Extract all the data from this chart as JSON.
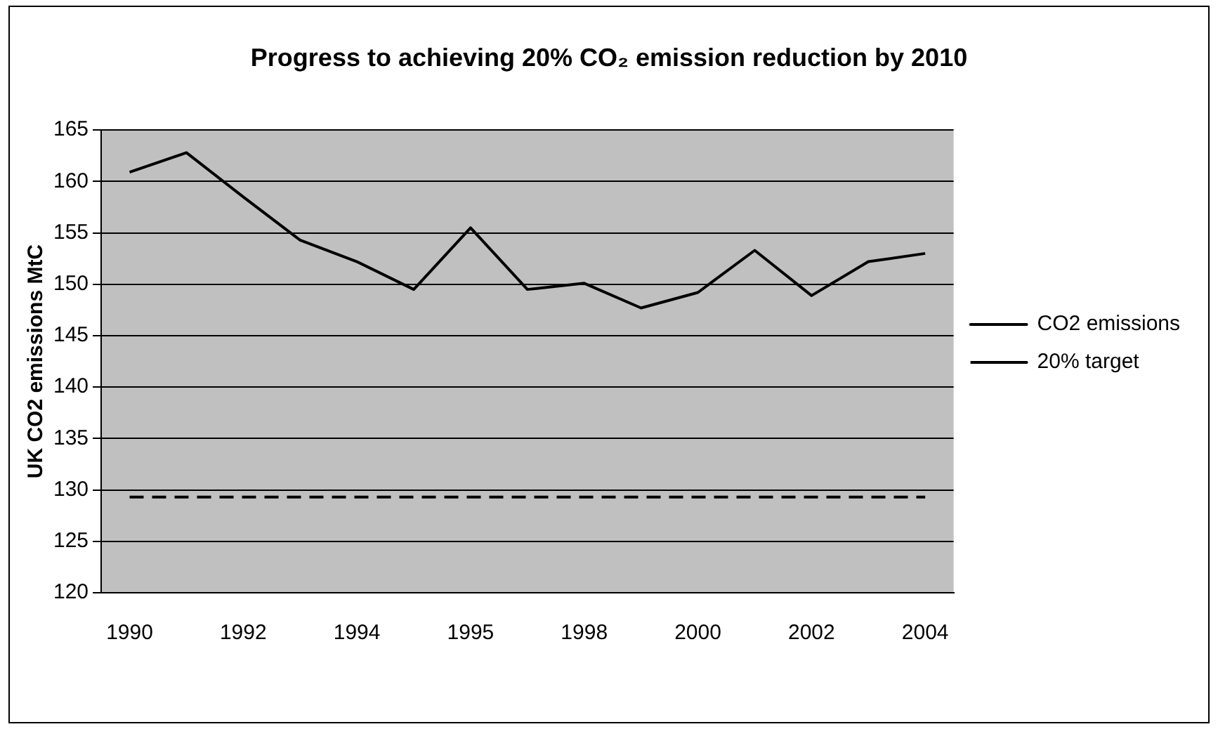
{
  "chart_data": {
    "type": "line",
    "title": "Progress to achieving 20% CO₂ emission reduction by 2010",
    "ylabel": "UK CO2 emissions MtC",
    "categories": [
      "1990",
      null,
      "1992",
      null,
      "1994",
      null,
      "1995",
      null,
      "1998",
      null,
      "2000",
      null,
      "2002",
      null,
      "2004"
    ],
    "series": [
      {
        "name": "CO2 emissions",
        "color": "#000000",
        "line_style": "solid",
        "values": [
          160.9,
          162.8,
          158.5,
          154.3,
          152.2,
          149.5,
          155.5,
          149.5,
          150.1,
          147.7,
          149.2,
          153.3,
          148.9,
          152.2,
          153.0
        ]
      },
      {
        "name": "20% target",
        "color": "#000000",
        "line_style": "dashed",
        "values": [
          129.3,
          129.3,
          129.3,
          129.3,
          129.3,
          129.3,
          129.3,
          129.3,
          129.3,
          129.3,
          129.3,
          129.3,
          129.3,
          129.3,
          129.3
        ]
      }
    ],
    "ylim": [
      120,
      165
    ],
    "yticks": [
      120,
      125,
      130,
      135,
      140,
      145,
      150,
      155,
      160,
      165
    ],
    "grid": "y",
    "legend": "right",
    "marker": "none"
  }
}
